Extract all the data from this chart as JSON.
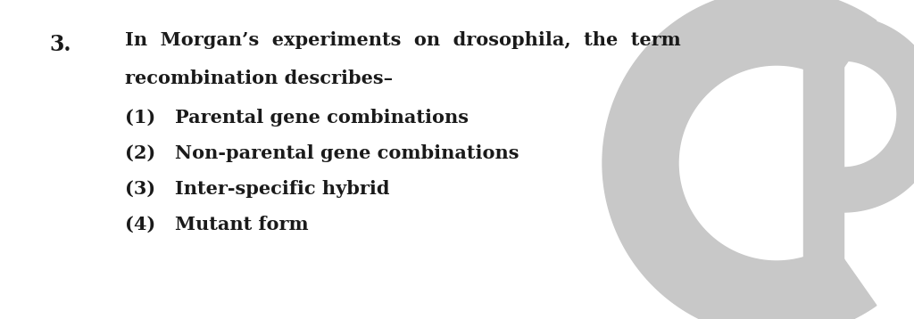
{
  "background_color": "#ffffff",
  "text_color": "#1a1a1a",
  "watermark_color": "#c8c8c8",
  "question_number": "3.",
  "question_line1": "In  Morgan’s  experiments  on  drosophila,  the  term",
  "question_line2": "recombination describes–",
  "options": [
    "(1)   Parental gene combinations",
    "(2)   Non-parental gene combinations",
    "(3)   Inter-specific hybrid",
    "(4)   Mutant form"
  ],
  "font_size_question": 15,
  "font_size_options": 15,
  "font_size_number": 17,
  "figsize": [
    10.24,
    3.58
  ],
  "dpi": 100
}
